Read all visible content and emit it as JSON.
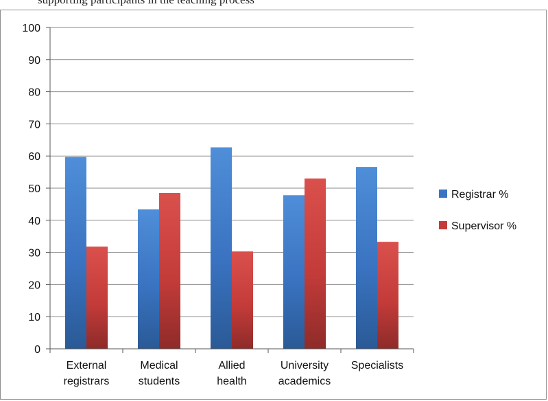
{
  "caption": "supporting participants in the teaching process",
  "chart_data": {
    "type": "bar",
    "title": "",
    "xlabel": "",
    "ylabel": "",
    "ylim": [
      0,
      100
    ],
    "yticks": [
      0,
      10,
      20,
      30,
      40,
      50,
      60,
      70,
      80,
      90,
      100
    ],
    "grid": true,
    "legend_position": "right",
    "categories": [
      [
        "External",
        "registrars"
      ],
      [
        "Medical",
        "students"
      ],
      [
        "Allied",
        "health"
      ],
      [
        "University",
        "academics"
      ],
      [
        "Specialists"
      ]
    ],
    "series": [
      {
        "name": "Registrar %",
        "color": "#3a73c1",
        "values": [
          59.7,
          43.4,
          62.7,
          47.8,
          56.6
        ]
      },
      {
        "name": "Supervisor %",
        "color": "#c43c3a",
        "values": [
          31.8,
          48.5,
          30.3,
          53.0,
          33.3
        ]
      }
    ]
  }
}
